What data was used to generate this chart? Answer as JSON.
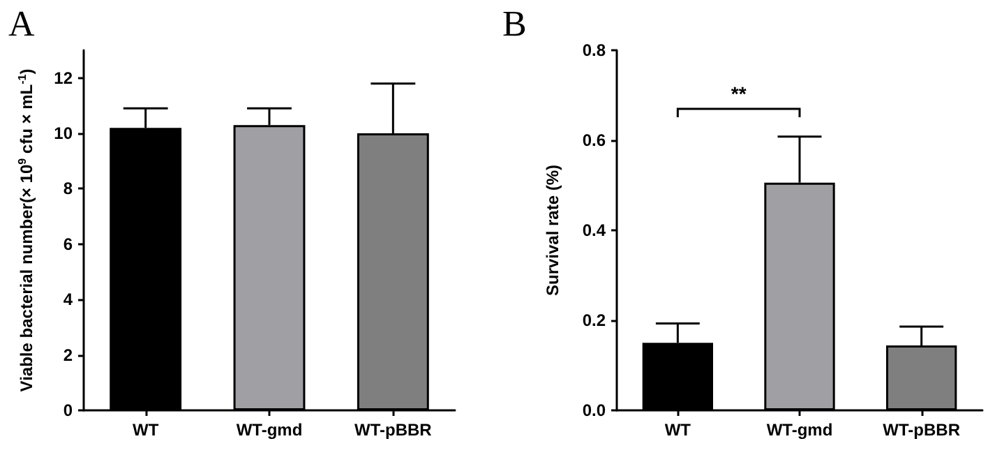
{
  "chart_data": [
    {
      "type": "bar",
      "title": "A",
      "categories": [
        "WT",
        "WT-gmd",
        "WT-pBBR"
      ],
      "colors": [
        "#000000",
        "#a0a0a4",
        "#7f7f7f"
      ],
      "values": [
        10.2,
        10.3,
        10.0
      ],
      "errors": [
        [
          10.2,
          10.9
        ],
        [
          10.3,
          10.9
        ],
        [
          10.0,
          11.8
        ]
      ],
      "ylabel": "Viable bacterial number(× 10$^{9}$ cfu × mL$^{-1}$)",
      "ylim": [
        0,
        13
      ],
      "yticks": [
        0,
        2,
        4,
        6,
        8,
        10,
        12
      ]
    },
    {
      "type": "bar",
      "title": "B",
      "categories": [
        "WT",
        "WT-gmd",
        "WT-pBBR"
      ],
      "colors": [
        "#000000",
        "#a0a0a4",
        "#7f7f7f"
      ],
      "values": [
        0.15,
        0.506,
        0.144
      ],
      "errors": [
        [
          0.15,
          0.193
        ],
        [
          0.506,
          0.608
        ],
        [
          0.144,
          0.186
        ]
      ],
      "ylabel": "Survival rate (%)",
      "ylim": [
        0,
        0.8
      ],
      "yticks": [
        {
          "value": 0,
          "label": "0.0"
        },
        {
          "value": 0.2,
          "label": "0.2"
        },
        {
          "value": 0.4,
          "label": "0.4"
        },
        {
          "value": 0.6,
          "label": "0.6"
        },
        {
          "value": 0.8,
          "label": "0.8"
        }
      ],
      "annotations": [
        "**"
      ]
    }
  ]
}
